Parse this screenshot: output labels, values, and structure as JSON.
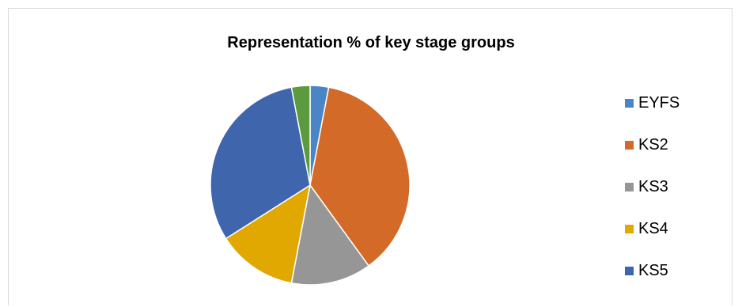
{
  "chart_data": {
    "type": "pie",
    "title": "Representation % of key stage groups",
    "categories": [
      "EYFS",
      "KS2",
      "KS3",
      "KS4",
      "KS5"
    ],
    "values": [
      3,
      37,
      13,
      13,
      31
    ],
    "extra_slice": {
      "color": "#5b9a3f",
      "value": 3
    },
    "colors": [
      "#4a86c6",
      "#d46a28",
      "#969696",
      "#e0a800",
      "#3f65ad"
    ],
    "start_angle_deg": 0,
    "direction": "clockwise",
    "legend_position": "right"
  }
}
